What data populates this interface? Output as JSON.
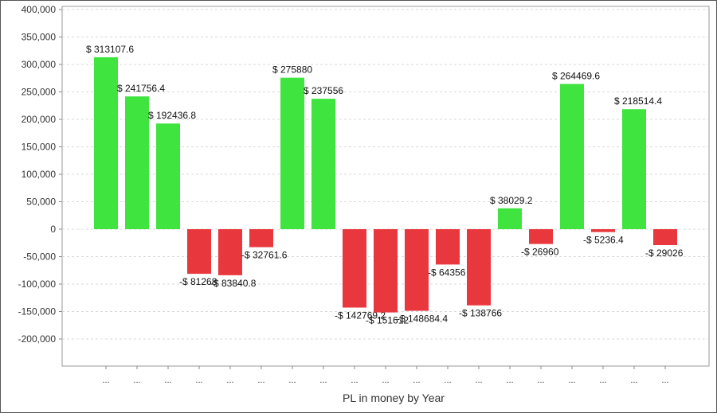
{
  "chart_data": {
    "type": "bar",
    "title": "",
    "xlabel": "PL in money by Year",
    "ylabel": "",
    "ylim": [
      -250000,
      400000
    ],
    "yticks": [
      -200000,
      -150000,
      -100000,
      -50000,
      0,
      50000,
      100000,
      150000,
      200000,
      250000,
      300000,
      350000,
      400000
    ],
    "ytick_labels": [
      "-200,000",
      "-150,000",
      "-100,000",
      "-50,000",
      "0",
      "50,000",
      "100,000",
      "150,000",
      "200,000",
      "250,000",
      "300,000",
      "350,000",
      "400,000"
    ],
    "categories": [
      "...",
      "...",
      "...",
      "...",
      "...",
      "...",
      "...",
      "...",
      "...",
      "...",
      "...",
      "...",
      "...",
      "...",
      "...",
      "...",
      "...",
      "...",
      "..."
    ],
    "values": [
      313107.6,
      241756.4,
      192436.8,
      -81268,
      -83840.8,
      -32761.6,
      275880,
      237556,
      -142769.2,
      -151612,
      -148684.4,
      -64356,
      -138766,
      38029.2,
      -26960,
      264469.6,
      -5236.4,
      218514.4,
      -29026
    ],
    "data_labels": [
      "$ 313107.6",
      "$ 241756.4",
      "$ 192436.8",
      "-$ 81268",
      "-$ 83840.8",
      "-$ 32761.6",
      "$ 275880",
      "$ 237556",
      "-$ 142769.2",
      "-$ 151612",
      "-$ 148684.4",
      "-$ 64356",
      "-$ 138766",
      "$ 38029.2",
      "-$ 26960",
      "$ 264469.6",
      "-$ 5236.4",
      "$ 218514.4",
      "-$ 29026"
    ],
    "grid": true,
    "legend": "none",
    "colors": {
      "positive": "#3fe43f",
      "negative": "#e8373d"
    }
  }
}
